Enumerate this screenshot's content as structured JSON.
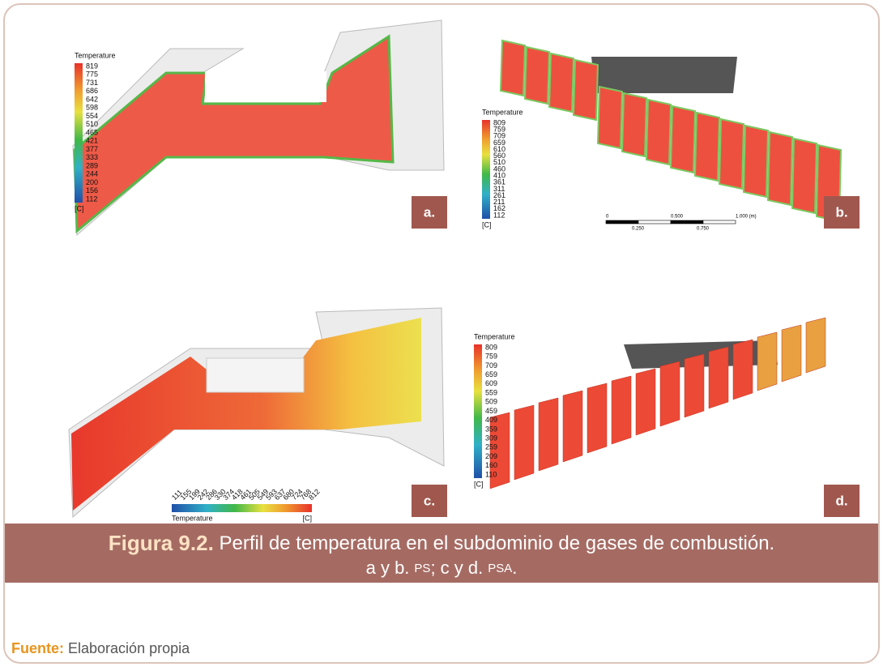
{
  "panels": [
    {
      "label": "a.",
      "legend": {
        "title": "Temperature",
        "ticks": [
          819,
          775,
          731,
          686,
          642,
          598,
          554,
          510,
          465,
          421,
          377,
          333,
          289,
          244,
          200,
          156,
          112
        ],
        "unit": "[C]"
      }
    },
    {
      "label": "b.",
      "legend": {
        "title": "Temperature",
        "ticks": [
          809,
          759,
          709,
          659,
          610,
          560,
          510,
          460,
          410,
          361,
          311,
          261,
          211,
          162,
          112
        ],
        "unit": "[C]"
      },
      "scale_bar": {
        "top": [
          "0",
          "0.500",
          "1.000 (m)"
        ],
        "bottom": [
          "0.250",
          "0.750"
        ]
      }
    },
    {
      "label": "c.",
      "legend": {
        "title": "Temperature",
        "ticks": [
          111,
          155,
          199,
          242,
          286,
          330,
          374,
          418,
          461,
          505,
          549,
          593,
          637,
          680,
          724,
          768,
          812
        ],
        "unit": "[C]"
      }
    },
    {
      "label": "d.",
      "legend": {
        "title": "Temperature",
        "ticks": [
          809,
          759,
          709,
          659,
          609,
          559,
          509,
          459,
          409,
          359,
          309,
          259,
          209,
          160,
          110
        ],
        "unit": "[C]"
      }
    }
  ],
  "caption": {
    "figure": "Figura 9.2.",
    "line1": "Perfil de temperatura en el subdominio de gases de combustión.",
    "line2": [
      "a y b.",
      "PS",
      "; c y d.",
      "PSA",
      "."
    ]
  },
  "source": {
    "label": "Fuente:",
    "text": "Elaboración propia"
  }
}
